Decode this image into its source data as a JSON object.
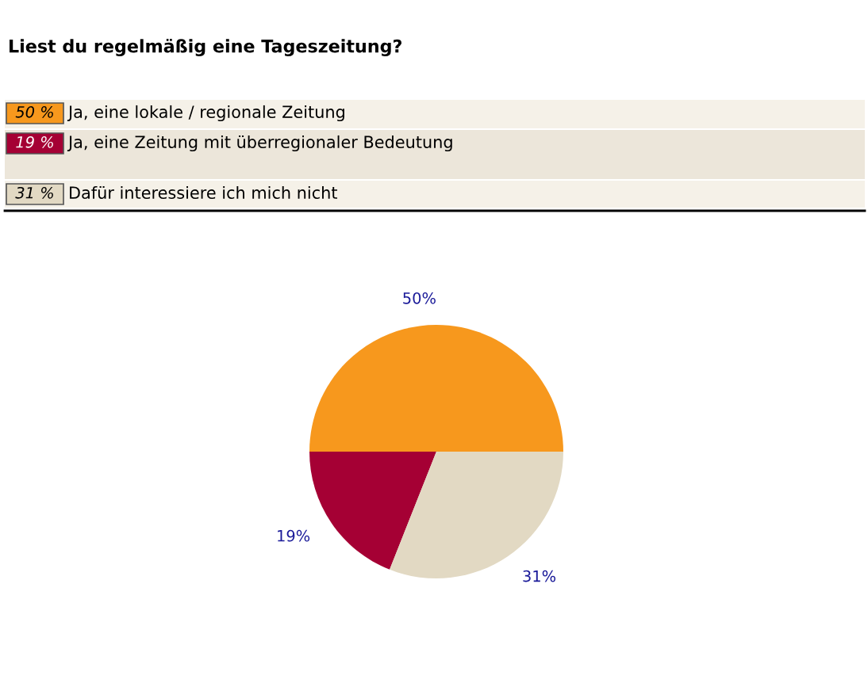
{
  "chart_data": {
    "type": "pie",
    "title": "Liest du regelmäßig eine Tageszeitung?",
    "categories": [
      "Ja, eine lokale / regionale Zeitung",
      "Ja, eine Zeitung mit überregionaler Bedeutung",
      "Dafür interessiere ich mich nicht"
    ],
    "values": [
      50,
      19,
      31
    ],
    "colors": [
      "#f7981d",
      "#a50034",
      "#e2d9c3"
    ],
    "value_labels": [
      "50%",
      "19%",
      "31%"
    ],
    "annotations": [
      "50 %",
      "19 %",
      "31 %"
    ],
    "legend": "top"
  }
}
